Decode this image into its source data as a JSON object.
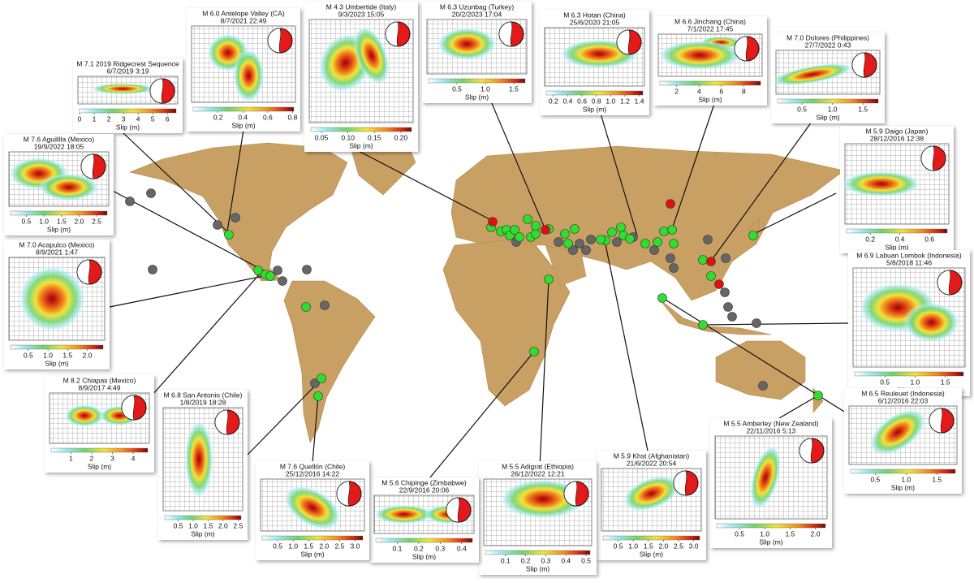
{
  "panels": [
    {
      "title": "M 7.1 2019 Ridgecrest Sequence",
      "date": "6/7/2019  3:19",
      "colorbar": {
        "lim": [
          0,
          6.6
        ],
        "ticks": [
          0,
          1,
          2,
          3,
          4,
          5,
          6
        ]
      },
      "axis_label": "Slip (m)"
    },
    {
      "title": "M 6.0 Antelope Valley (CA)",
      "date": "8/7/2021 22:49",
      "colorbar": {
        "lim": [
          0,
          0.81
        ],
        "ticks": [
          0.2,
          0.4,
          0.6,
          0.8
        ]
      },
      "axis_label": "Slip (m)"
    },
    {
      "title": "M 4.3 Umbertide (Italy)",
      "date": "9/3/2023 15:05",
      "colorbar": {
        "lim": [
          0.03,
          0.22
        ],
        "ticks": [
          0.05,
          {
            "value": 0.1,
            "label": "0.10"
          },
          0.15,
          {
            "value": 0.2,
            "label": "0.20"
          }
        ]
      },
      "axis_label": "Slip (m)"
    },
    {
      "title": "M 6.3 Uzunbag (Turkey)",
      "date": "20/2/2023 17:04",
      "colorbar": {
        "lim": [
          0,
          1.7
        ],
        "ticks": [
          0.5,
          {
            "value": 1,
            "label": "1.0"
          },
          1.5
        ]
      },
      "axis_label": "Slip (m)"
    },
    {
      "title": "M 6.3 Hotan (China)",
      "date": "25/6/2020 21:05",
      "colorbar": {
        "lim": [
          0.1,
          1.45
        ],
        "ticks": [
          0.2,
          0.4,
          0.6,
          0.8,
          {
            "value": 1,
            "label": "1.0"
          },
          1.2,
          1.4
        ]
      },
      "axis_label": "Slip (m)"
    },
    {
      "title": "M 6.6 Jinchang (China)",
      "date": "7/1/2022 17:45",
      "colorbar": {
        "lim": [
          0.5,
          9.5
        ],
        "ticks": [
          2,
          4,
          6,
          8
        ]
      },
      "axis_label": "Slip (m)"
    },
    {
      "title": "M 7.0 Dolores (Philippines)",
      "date": "27/7/2022  0:43",
      "colorbar": {
        "lim": [
          0.1,
          1.75
        ],
        "ticks": [
          0.5,
          {
            "value": 1,
            "label": "1.0"
          },
          1.5
        ]
      },
      "axis_label": "Slip (m)"
    },
    {
      "title": "M 5.9 Daigo (Japan)",
      "date": "28/12/2016 12:38",
      "colorbar": {
        "lim": [
          0.04,
          0.72
        ],
        "ticks": [
          0.2,
          0.4,
          0.6
        ]
      },
      "axis_label": "Slip (m)"
    },
    {
      "title": "M 6.9 Labuan Lombok (Indonesia)",
      "date": "5/8/2018 11:46",
      "colorbar": {
        "lim": [
          0,
          1.8
        ],
        "ticks": [
          0.5,
          {
            "value": 1,
            "label": "1.0"
          },
          1.5
        ]
      },
      "axis_label": "Slip (m)"
    },
    {
      "title": "M 6.5 Reuleuet (Indonesia)",
      "date": "6/12/2016 22:03",
      "colorbar": {
        "lim": [
          0.1,
          1.8
        ],
        "ticks": [
          0.5,
          {
            "value": 1,
            "label": "1.0"
          },
          1.5
        ]
      },
      "axis_label": "Slip (m)"
    },
    {
      "title": "M 5.5 Amberley (New Zealand)",
      "date": "22/11/2016  5:13",
      "colorbar": {
        "lim": [
          0.05,
          2.2
        ],
        "ticks": [
          0.5,
          {
            "value": 1,
            "label": "1.0"
          },
          1.5,
          {
            "value": 2,
            "label": "2.0"
          }
        ]
      },
      "axis_label": "Slip (m)"
    },
    {
      "title": "M 5.9 Khst (Afghanistan)",
      "date": "21/6/2022 20:54",
      "colorbar": {
        "lim": [
          0,
          3.2
        ],
        "ticks": [
          0.5,
          {
            "value": 1,
            "label": "1.0"
          },
          1.5,
          {
            "value": 2,
            "label": "2.0"
          },
          2.5,
          {
            "value": 3,
            "label": "3.0"
          }
        ]
      },
      "axis_label": "Slip (m)"
    },
    {
      "title": "M 5.5 Adigrat (Ethiopia)",
      "date": "26/12/2022 12:21",
      "colorbar": {
        "lim": [
          0,
          0.52
        ],
        "ticks": [
          0.1,
          0.2,
          0.3,
          0.4,
          0.5
        ]
      },
      "axis_label": "Slip (m)"
    },
    {
      "title": "M 5.6 Chipinge (Zimbabwe)",
      "date": "22/9/2016 20:06",
      "colorbar": {
        "lim": [
          0,
          0.45
        ],
        "ticks": [
          0.1,
          0.2,
          0.3,
          0.4
        ]
      },
      "axis_label": "Slip (m)"
    },
    {
      "title": "M 7.6 Quellón (Chile)",
      "date": "25/12/2016 14:22",
      "colorbar": {
        "lim": [
          0,
          3.25
        ],
        "ticks": [
          0.5,
          {
            "value": 1,
            "label": "1.0"
          },
          1.5,
          {
            "value": 2,
            "label": "2.0"
          },
          2.5,
          {
            "value": 3,
            "label": "3.0"
          }
        ]
      },
      "axis_label": "Slip (m)"
    },
    {
      "title": "M 6.8 San Antonio (Chile)",
      "date": "1/8/2019 18:28",
      "colorbar": {
        "lim": [
          0.05,
          2.6
        ],
        "ticks": [
          0.5,
          {
            "value": 1,
            "label": "1.0"
          },
          1.5,
          {
            "value": 2,
            "label": "2.0"
          },
          2.5
        ]
      },
      "axis_label": "Slip (m)"
    },
    {
      "title": "M 8.2 Chiapas (Mexico)",
      "date": "8/9/2017  4:49",
      "colorbar": {
        "lim": [
          0.05,
          4.7
        ],
        "ticks": [
          1,
          2,
          3,
          4
        ]
      },
      "axis_label": "Slip (m)"
    },
    {
      "title": "M 7.0 Acapulco (Mexico)",
      "date": "8/9/2021  1:47",
      "colorbar": {
        "lim": [
          0.05,
          2.4
        ],
        "ticks": [
          0.5,
          {
            "value": 1,
            "label": "1.0"
          },
          1.5,
          {
            "value": 2,
            "label": "2.0"
          }
        ]
      },
      "axis_label": "Slip (m)"
    },
    {
      "title": "M 7.6 Aguililla (Mexico)",
      "date": "19/9/2022 18:05",
      "colorbar": {
        "lim": [
          0.05,
          2.8
        ],
        "ticks": [
          0.5,
          {
            "value": 1,
            "label": "1.0"
          },
          1.5,
          {
            "value": 2,
            "label": "2.0"
          },
          2.5
        ]
      },
      "axis_label": "Slip (m)"
    }
  ]
}
